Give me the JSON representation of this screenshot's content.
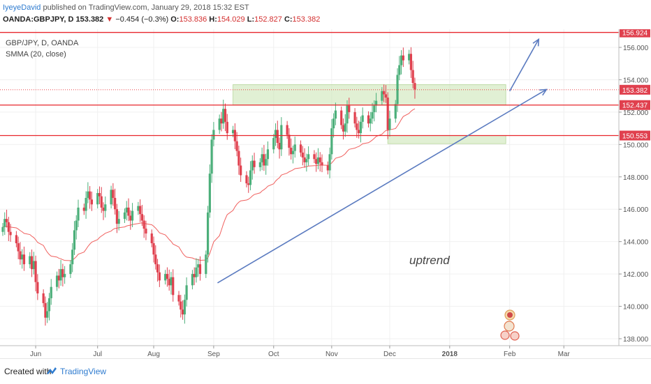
{
  "header": {
    "author": "IyeyeDavid",
    "published_text": " published on TradingView.com, January 29, 2018 15:32 EST",
    "symbol": "OANDA:GBPJPY, D",
    "last": "153.382",
    "change_arrow": "▼",
    "change": "−0.454 (−0.3%)",
    "o_label": "O:",
    "o": "153.836",
    "h_label": "H:",
    "h": "154.029",
    "l_label": "L:",
    "l": "152.827",
    "c_label": "C:",
    "c": "153.382"
  },
  "legend": {
    "symbol": "GBP/JPY, D, OANDA",
    "indicator": "SMMA (20, close)"
  },
  "footer": {
    "created_with": "Created with",
    "brand": "TradingView"
  },
  "colors": {
    "up": "#4caf7a",
    "down": "#e0404e",
    "smma": "#f0605e",
    "hline": "#e8262c",
    "trend": "#5b7bc0",
    "zone": "#c9e3b1",
    "price_tag": "#e0404e"
  },
  "chart_data": {
    "type": "candlestick",
    "y_axis": {
      "ticks": [
        "138.000",
        "140.000",
        "142.000",
        "144.000",
        "146.000",
        "148.000",
        "150.000",
        "152.000",
        "154.000",
        "156.000"
      ],
      "range": [
        137.5,
        157.2
      ]
    },
    "x_axis": {
      "ticks": [
        "Jun",
        "Jul",
        "Aug",
        "Sep",
        "Oct",
        "Nov",
        "Dec",
        "2018",
        "Feb",
        "Mar"
      ],
      "start": "2017-05-15",
      "end": "2018-03-28"
    },
    "levels": [
      {
        "value": 156.924,
        "label": "156.924"
      },
      {
        "value": 152.437,
        "label": "152.437"
      },
      {
        "value": 150.553,
        "label": "150.553"
      }
    ],
    "last_price": {
      "value": 153.382,
      "label": "153.382"
    },
    "annotation": "uptrend",
    "zones": [
      {
        "from": "2017-09-11",
        "to": "2018-01-30",
        "low": 152.437,
        "high": 153.7
      },
      {
        "from": "2017-11-30",
        "to": "2018-01-30",
        "low": 150.05,
        "high": 150.553
      }
    ],
    "trendlines": [
      {
        "from": [
          "2017-09-03",
          141.45
        ],
        "to": [
          "2018-02-20",
          153.4
        ]
      },
      {
        "from": [
          "2018-02-01",
          153.3
        ],
        "to": [
          "2018-02-16",
          156.5
        ]
      }
    ],
    "closes": [
      144.9,
      145.4,
      145.2,
      144.6,
      144.4,
      143.9,
      143.4,
      142.9,
      143.2,
      142.6,
      143.1,
      142.3,
      142.8,
      141.5,
      140.8,
      140.2,
      139.3,
      139.7,
      140.5,
      141.2,
      141.9,
      141.6,
      142.3,
      141.8,
      142.0,
      142.6,
      143.5,
      144.7,
      145.3,
      146.1,
      145.9,
      146.7,
      147.1,
      146.6,
      146.3,
      147.0,
      146.8,
      146.1,
      145.9,
      146.3,
      147.2,
      146.7,
      146.0,
      145.1,
      145.4,
      145.8,
      146.1,
      145.6,
      145.3,
      145.9,
      146.2,
      145.7,
      145.3,
      144.8,
      144.5,
      143.9,
      143.2,
      142.6,
      142.1,
      141.6,
      142.0,
      141.7,
      141.3,
      141.8,
      140.7,
      140.3,
      139.8,
      139.5,
      140.4,
      141.3,
      142.0,
      141.8,
      142.4,
      142.6,
      142.0,
      143.2,
      145.8,
      148.2,
      150.3,
      150.9,
      151.6,
      151.3,
      152.2,
      151.4,
      150.7,
      150.9,
      150.2,
      149.6,
      148.7,
      148.1,
      147.6,
      147.5,
      148.4,
      149.0,
      148.6,
      148.9,
      149.4,
      148.7,
      149.1,
      149.7,
      150.4,
      150.9,
      150.1,
      149.7,
      151.2,
      150.6,
      149.8,
      149.4,
      149.6,
      150.0,
      149.5,
      149.2,
      148.9,
      149.1,
      149.4,
      149.1,
      148.8,
      149.2,
      148.9,
      148.7,
      148.4,
      149.4,
      151.0,
      151.6,
      152.1,
      151.2,
      150.8,
      151.3,
      152.4,
      152.0,
      151.3,
      150.9,
      150.7,
      151.4,
      151.8,
      151.3,
      151.6,
      152.0,
      152.4,
      152.7,
      153.3,
      153.1,
      152.9,
      150.9,
      151.6,
      152.5,
      154.3,
      154.9,
      155.5,
      155.2,
      155.6,
      154.6,
      153.8,
      153.4
    ]
  }
}
